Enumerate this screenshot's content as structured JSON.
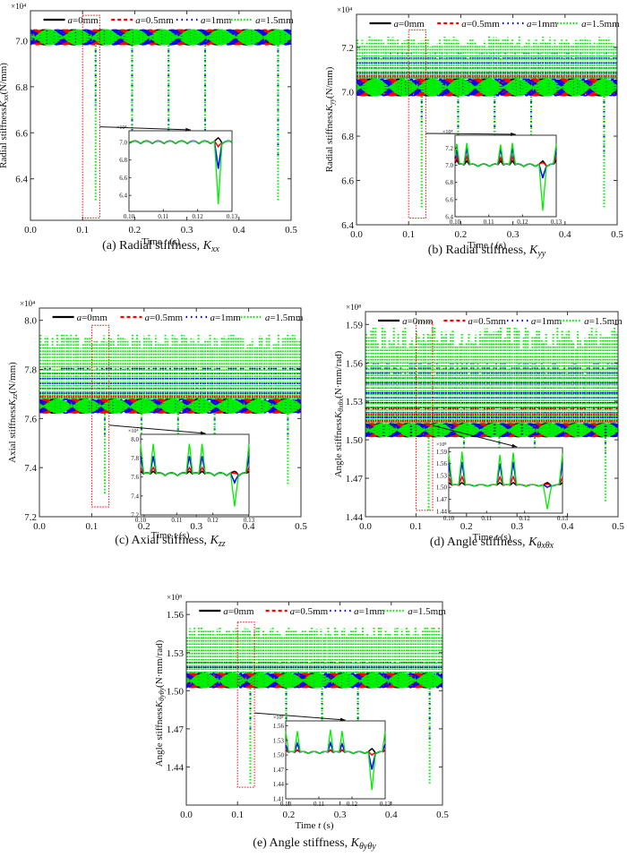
{
  "figure": {
    "legend": [
      {
        "prefix": "a",
        "label": "=0mm",
        "color": "#000000",
        "style": "solid"
      },
      {
        "prefix": "a",
        "label": "=0.5mm",
        "color": "#ff0000",
        "style": "dashed"
      },
      {
        "prefix": "a",
        "label": "=1mm",
        "color": "#0000ff",
        "style": "dashdot"
      },
      {
        "prefix": "a",
        "label": "=1.5mm",
        "color": "#00ee00",
        "style": "dotted"
      }
    ],
    "colors": {
      "a0": "#000000",
      "a05": "#ff0000",
      "a1": "#0000ff",
      "a15": "#00ee00",
      "zoom_box": "#ff0000",
      "axis": "#333333"
    }
  },
  "chart_data": [
    {
      "id": "a",
      "type": "line",
      "caption_prefix": "(a) Radial stiffness, ",
      "caption_symbol": "K",
      "caption_sub": "xx",
      "ylabel_prefix": "Radial stiffness",
      "ylabel_symbol": "K",
      "ylabel_sub": "xx",
      "ylabel_unit": "(N/mm)",
      "xlabel_prefix": "Time ",
      "xlabel_symbol": "t",
      "xlabel_unit": " (s)",
      "multiplier": "×10⁴",
      "xlim": [
        0,
        0.5
      ],
      "ylim": [
        6.22,
        7.13
      ],
      "xticks": [
        "0.0",
        "0.1",
        "0.2",
        "0.3",
        "0.4",
        "0.5"
      ],
      "yticks": [
        6.4,
        6.6,
        6.8,
        7.0
      ],
      "ytick_labels": [
        "6.4",
        "6.6",
        "6.8",
        "7.0"
      ],
      "band": {
        "base": 6.98,
        "top": 7.05
      },
      "spikes_up": {
        "a0": 0,
        "a05": 0,
        "a1": 0,
        "a15": 0
      },
      "spikes_down": [
        {
          "t": 0.125,
          "a15": 6.3,
          "a1": 6.7
        },
        {
          "t": 0.195,
          "a15": 6.45,
          "a1": 6.6
        },
        {
          "t": 0.265,
          "a15": 6.44,
          "a1": 6.6
        },
        {
          "t": 0.335,
          "a15": 6.32,
          "a1": 6.5
        },
        {
          "t": 0.475,
          "a15": 6.3,
          "a1": 6.5
        }
      ],
      "zoom_box": {
        "t0": 0.1,
        "t1": 0.133,
        "y0": 6.23,
        "y1": 7.11
      },
      "inset": {
        "xlim": [
          0.1,
          0.13
        ],
        "ylim": [
          6.22,
          7.13
        ],
        "xticks": [
          "0.10",
          "0.11",
          "0.12",
          "0.13"
        ],
        "yticks": [
          6.4,
          6.6,
          6.8,
          7.0
        ],
        "ytick_labels": [
          "6.4",
          "6.6",
          "6.8",
          "7.0"
        ],
        "multiplier": "×10⁴",
        "base": 7.0,
        "ripple": 0.03,
        "peaks_up": [],
        "dip": {
          "t": 0.126,
          "a0": 7.05,
          "a05": 6.95,
          "a1": 6.7,
          "a15": 6.3
        }
      }
    },
    {
      "id": "b",
      "type": "line",
      "caption_prefix": "(b) Radial stiffness, ",
      "caption_symbol": "K",
      "caption_sub": "yy",
      "ylabel_prefix": "Radial stiffness",
      "ylabel_symbol": "K",
      "ylabel_sub": "yy",
      "ylabel_unit": "(N/mm)",
      "xlabel_prefix": "Time ",
      "xlabel_symbol": "t",
      "xlabel_unit": " (s)",
      "multiplier": "×10⁴",
      "xlim": [
        0,
        0.5
      ],
      "ylim": [
        6.4,
        7.35
      ],
      "xticks": [
        "0.0",
        "0.1",
        "0.2",
        "0.3",
        "0.4",
        "0.5"
      ],
      "yticks": [
        6.4,
        6.6,
        6.8,
        7.0,
        7.2
      ],
      "ytick_labels": [
        "6.4",
        "6.6",
        "6.8",
        "7.0",
        "7.2"
      ],
      "band": {
        "base": 6.98,
        "top": 7.06
      },
      "spikes_up": {
        "a0": 7.06,
        "a05": 7.09,
        "a1": 7.18,
        "a15": 7.25
      },
      "spikes_down": [
        {
          "t": 0.125,
          "a15": 6.47,
          "a1": 6.85
        },
        {
          "t": 0.195,
          "a15": 6.6,
          "a1": 6.8
        },
        {
          "t": 0.265,
          "a15": 6.55,
          "a1": 6.75
        },
        {
          "t": 0.335,
          "a15": 6.5,
          "a1": 6.7
        },
        {
          "t": 0.475,
          "a15": 6.48,
          "a1": 6.7
        }
      ],
      "zoom_box": {
        "t0": 0.1,
        "t1": 0.133,
        "y0": 6.43,
        "y1": 7.28
      },
      "inset": {
        "xlim": [
          0.1,
          0.13
        ],
        "ylim": [
          6.4,
          7.35
        ],
        "xticks": [
          "0.10",
          "0.11",
          "0.12",
          "0.13"
        ],
        "yticks": [
          6.4,
          6.6,
          6.8,
          7.0,
          7.2
        ],
        "ytick_labels": [
          "6.4",
          "6.6",
          "6.8",
          "7.0",
          "7.2"
        ],
        "multiplier": "×10⁴",
        "base": 7.0,
        "ripple": 0.03,
        "peaks_up": [
          {
            "t": 0.1005,
            "a0": 7.06,
            "a05": 7.1,
            "a1": 7.18,
            "a15": 7.25
          },
          {
            "t": 0.1035,
            "a0": 7.05,
            "a05": 7.1,
            "a1": 7.2,
            "a15": 7.26
          },
          {
            "t": 0.1135,
            "a0": 7.05,
            "a05": 7.09,
            "a1": 7.19,
            "a15": 7.24
          },
          {
            "t": 0.117,
            "a0": 7.05,
            "a05": 7.1,
            "a1": 7.2,
            "a15": 7.26
          },
          {
            "t": 0.13,
            "a0": 7.06,
            "a05": 7.1,
            "a1": 7.19,
            "a15": 7.25
          }
        ],
        "dip": {
          "t": 0.126,
          "a0": 7.05,
          "a05": 7.03,
          "a1": 6.85,
          "a15": 6.47
        }
      }
    },
    {
      "id": "c",
      "type": "line",
      "caption_prefix": "(c) Axial stiffness, ",
      "caption_symbol": "K",
      "caption_sub": "zz",
      "ylabel_prefix": "Axial stiffness",
      "ylabel_symbol": "K",
      "ylabel_sub": "zz",
      "ylabel_unit": "(N/mm)",
      "xlabel_prefix": "Time ",
      "xlabel_symbol": "t",
      "xlabel_unit": " (s)",
      "multiplier": "×10⁴",
      "xlim": [
        0,
        0.5
      ],
      "ylim": [
        7.2,
        8.05
      ],
      "xticks": [
        "0.0",
        "0.1",
        "0.2",
        "0.3",
        "0.4",
        "0.5"
      ],
      "yticks": [
        7.2,
        7.4,
        7.6,
        7.8,
        8.0
      ],
      "ytick_labels": [
        "7.2",
        "7.4",
        "7.6",
        "7.8",
        "8.0"
      ],
      "band": {
        "base": 7.62,
        "top": 7.68
      },
      "spikes_up": {
        "a0": 7.66,
        "a05": 7.7,
        "a1": 7.82,
        "a15": 7.95
      },
      "spikes_down": [
        {
          "t": 0.125,
          "a15": 7.29,
          "a1": 7.52
        },
        {
          "t": 0.195,
          "a15": 7.4,
          "a1": 7.55
        },
        {
          "t": 0.265,
          "a15": 7.38,
          "a1": 7.55
        },
        {
          "t": 0.335,
          "a15": 7.35,
          "a1": 7.5
        },
        {
          "t": 0.475,
          "a15": 7.33,
          "a1": 7.5
        }
      ],
      "zoom_box": {
        "t0": 0.1,
        "t1": 0.133,
        "y0": 7.24,
        "y1": 7.98
      },
      "inset": {
        "xlim": [
          0.1,
          0.13
        ],
        "ylim": [
          7.2,
          8.05
        ],
        "xticks": [
          "0.10",
          "0.11",
          "0.12",
          "0.13"
        ],
        "yticks": [
          7.2,
          7.4,
          7.6,
          7.8,
          8.0
        ],
        "ytick_labels": [
          "7.2",
          "7.4",
          "7.6",
          "7.8",
          "8.0"
        ],
        "multiplier": "×10⁴",
        "base": 7.63,
        "ripple": 0.03,
        "peaks_up": [
          {
            "t": 0.1,
            "a0": 7.66,
            "a05": 7.7,
            "a1": 7.82,
            "a15": 7.95
          },
          {
            "t": 0.1035,
            "a0": 7.66,
            "a05": 7.7,
            "a1": 7.82,
            "a15": 7.95
          },
          {
            "t": 0.1135,
            "a0": 7.66,
            "a05": 7.7,
            "a1": 7.82,
            "a15": 7.95
          },
          {
            "t": 0.117,
            "a0": 7.66,
            "a05": 7.7,
            "a1": 7.82,
            "a15": 7.95
          },
          {
            "t": 0.13,
            "a0": 7.66,
            "a05": 7.7,
            "a1": 7.82,
            "a15": 7.95
          }
        ],
        "dip": {
          "t": 0.126,
          "a0": 7.66,
          "a05": 7.64,
          "a1": 7.54,
          "a15": 7.29
        }
      }
    },
    {
      "id": "d",
      "type": "line",
      "caption_prefix": "(d) Angle stiffness, ",
      "caption_symbol": "K",
      "caption_sub": "θxθx",
      "ylabel_prefix": "Angle stiffness",
      "ylabel_symbol": "K",
      "ylabel_sub": "θxθx",
      "ylabel_unit": "(N·mm/rad)",
      "xlabel_prefix": "Time ",
      "xlabel_symbol": "t",
      "xlabel_unit": " (s)",
      "multiplier": "×10⁸",
      "xlim": [
        0,
        0.5
      ],
      "ylim": [
        1.44,
        1.6
      ],
      "xticks": [
        "0.0",
        "0.1",
        "0.2",
        "0.3",
        "0.4",
        "0.5"
      ],
      "yticks": [
        1.44,
        1.47,
        1.5,
        1.53,
        1.56,
        1.59
      ],
      "ytick_labels": [
        "1.44",
        "1.47",
        "1.50",
        "1.53",
        "1.56",
        "1.59"
      ],
      "band": {
        "base": 1.502,
        "top": 1.513
      },
      "spikes_up": {
        "a0": 1.512,
        "a05": 1.526,
        "a1": 1.563,
        "a15": 1.589
      },
      "spikes_down": [
        {
          "t": 0.125,
          "a15": 1.445,
          "a1": 1.5
        },
        {
          "t": 0.195,
          "a15": 1.46,
          "a1": 1.49
        },
        {
          "t": 0.265,
          "a15": 1.455,
          "a1": 1.49
        },
        {
          "t": 0.335,
          "a15": 1.45,
          "a1": 1.49
        },
        {
          "t": 0.475,
          "a15": 1.451,
          "a1": 1.49
        }
      ],
      "zoom_box": {
        "t0": 0.1,
        "t1": 0.133,
        "y0": 1.445,
        "y1": 1.592
      },
      "inset": {
        "xlim": [
          0.1,
          0.13
        ],
        "ylim": [
          1.435,
          1.6
        ],
        "xticks": [
          "0.10",
          "0.11",
          "0.12",
          "0.13"
        ],
        "yticks": [
          1.44,
          1.47,
          1.5,
          1.53,
          1.56,
          1.59
        ],
        "ytick_labels": [
          "1.44",
          "1.47",
          "1.50",
          "1.53",
          "1.56",
          "1.59"
        ],
        "multiplier": "×10⁸",
        "base": 1.505,
        "ripple": 0.004,
        "peaks_up": [
          {
            "t": 0.1,
            "a0": 1.512,
            "a05": 1.525,
            "a1": 1.56,
            "a15": 1.585
          },
          {
            "t": 0.1035,
            "a0": 1.512,
            "a05": 1.527,
            "a1": 1.564,
            "a15": 1.59
          },
          {
            "t": 0.1135,
            "a0": 1.512,
            "a05": 1.526,
            "a1": 1.56,
            "a15": 1.582
          },
          {
            "t": 0.117,
            "a0": 1.512,
            "a05": 1.527,
            "a1": 1.564,
            "a15": 1.588
          },
          {
            "t": 0.13,
            "a0": 1.512,
            "a05": 1.525,
            "a1": 1.562,
            "a15": 1.585
          }
        ],
        "dip": {
          "t": 0.126,
          "a0": 1.512,
          "a05": 1.508,
          "a1": 1.5,
          "a15": 1.445
        }
      }
    },
    {
      "id": "e",
      "type": "line",
      "caption_prefix": "(e) Angle stiffness, ",
      "caption_symbol": "K",
      "caption_sub": "θyθy",
      "ylabel_prefix": "Angle stiffness",
      "ylabel_symbol": "K",
      "ylabel_sub": "θyθy",
      "ylabel_unit": "(N·mm/rad)",
      "xlabel_prefix": "Time ",
      "xlabel_symbol": "t",
      "xlabel_unit": " (s)",
      "multiplier": "×10⁸",
      "xlim": [
        0,
        0.5
      ],
      "ylim": [
        1.41,
        1.57
      ],
      "xticks": [
        "0.0",
        "0.1",
        "0.2",
        "0.3",
        "0.4",
        "0.5"
      ],
      "yticks": [
        1.44,
        1.47,
        1.5,
        1.53,
        1.56
      ],
      "ytick_labels": [
        "1.44",
        "1.47",
        "1.50",
        "1.53",
        "1.56"
      ],
      "band": {
        "base": 1.502,
        "top": 1.514
      },
      "spikes_up": {
        "a0": 1.512,
        "a05": 1.513,
        "a1": 1.525,
        "a15": 1.551
      },
      "spikes_down": [
        {
          "t": 0.125,
          "a15": 1.426,
          "a1": 1.47
        },
        {
          "t": 0.195,
          "a15": 1.44,
          "a1": 1.47
        },
        {
          "t": 0.265,
          "a15": 1.44,
          "a1": 1.47
        },
        {
          "t": 0.335,
          "a15": 1.43,
          "a1": 1.46
        },
        {
          "t": 0.475,
          "a15": 1.427,
          "a1": 1.46
        }
      ],
      "zoom_box": {
        "t0": 0.1,
        "t1": 0.133,
        "y0": 1.424,
        "y1": 1.554
      },
      "inset": {
        "xlim": [
          0.1,
          0.13
        ],
        "ylim": [
          1.41,
          1.57
        ],
        "xticks": [
          "0.10",
          "0.11",
          "0.12",
          "0.13"
        ],
        "yticks": [
          1.41,
          1.44,
          1.47,
          1.5,
          1.53,
          1.56
        ],
        "ytick_labels": [
          "1.41",
          "1.44",
          "1.47",
          "1.50",
          "1.53",
          "1.56"
        ],
        "multiplier": "×10⁸",
        "base": 1.505,
        "ripple": 0.004,
        "peaks_up": [
          {
            "t": 0.1,
            "a0": 1.51,
            "a05": 1.511,
            "a1": 1.52,
            "a15": 1.548
          },
          {
            "t": 0.1035,
            "a0": 1.51,
            "a05": 1.511,
            "a1": 1.524,
            "a15": 1.549
          },
          {
            "t": 0.1135,
            "a0": 1.51,
            "a05": 1.511,
            "a1": 1.525,
            "a15": 1.552
          },
          {
            "t": 0.117,
            "a0": 1.51,
            "a05": 1.511,
            "a1": 1.523,
            "a15": 1.549
          },
          {
            "t": 0.13,
            "a0": 1.51,
            "a05": 1.511,
            "a1": 1.522,
            "a15": 1.548
          }
        ],
        "dip": {
          "t": 0.126,
          "a0": 1.513,
          "a05": 1.5,
          "a1": 1.47,
          "a15": 1.428
        }
      }
    }
  ]
}
